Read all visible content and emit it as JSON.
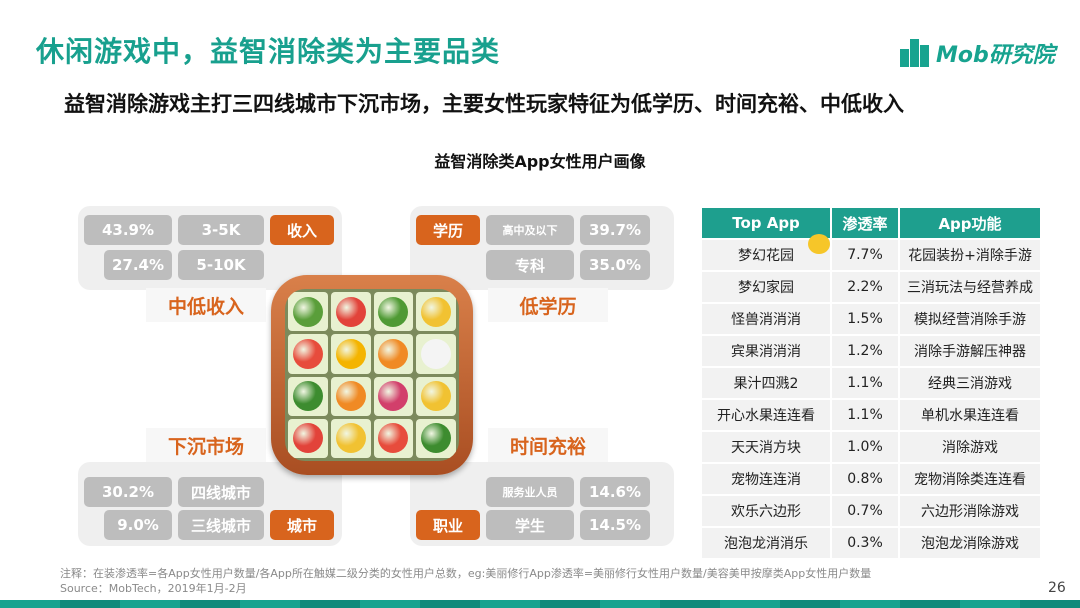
{
  "header": {
    "title": "休闲游戏中，益智消除类为主要品类",
    "subtitle": "益智消除游戏主打三四线城市下沉市场，主要女性玩家特征为低学历、时间充裕、中低收入",
    "logo_text": "Mob研究院"
  },
  "section_title": "益智消除类App女性用户画像",
  "income": {
    "label": "中低收入",
    "tag": "收入",
    "rows": [
      {
        "pct": "43.9%",
        "range": "3-5K"
      },
      {
        "pct": "27.4%",
        "range": "5-10K"
      }
    ]
  },
  "education": {
    "label": "低学历",
    "tag": "学历",
    "rows": [
      {
        "name": "高中及以下",
        "pct": "39.7%"
      },
      {
        "name": "专科",
        "pct": "35.0%"
      }
    ]
  },
  "market": {
    "label": "下沉市场",
    "tag": "城市",
    "rows": [
      {
        "pct": "30.2%",
        "name": "四线城市"
      },
      {
        "pct": "9.0%",
        "name": "三线城市"
      }
    ]
  },
  "time": {
    "label": "时间充裕",
    "tag": "职业",
    "rows": [
      {
        "name": "服务业人员",
        "pct": "14.6%"
      },
      {
        "name": "学生",
        "pct": "14.5%"
      }
    ]
  },
  "app_table": {
    "headers": [
      "Top App",
      "渗透率",
      "App功能"
    ],
    "rows": [
      [
        "梦幻花园",
        "7.7%",
        "花园装扮+消除手游"
      ],
      [
        "梦幻家园",
        "2.2%",
        "三消玩法与经营养成"
      ],
      [
        "怪兽消消消",
        "1.5%",
        "模拟经营消除手游"
      ],
      [
        "宾果消消消",
        "1.2%",
        "消除手游解压神器"
      ],
      [
        "果汁四溅2",
        "1.1%",
        "经典三消游戏"
      ],
      [
        "开心水果连连看",
        "1.1%",
        "单机水果连连看"
      ],
      [
        "天天消方块",
        "1.0%",
        "消除游戏"
      ],
      [
        "宠物连连消",
        "0.8%",
        "宠物消除类连连看"
      ],
      [
        "欢乐六边形",
        "0.7%",
        "六边形消除游戏"
      ],
      [
        "泡泡龙消消乐",
        "0.3%",
        "泡泡龙消除游戏"
      ]
    ]
  },
  "footer": {
    "note": "注释：在装渗透率=各App女性用户数量/各App所在触媒二级分类的女性用户总数，eg:美丽修行App渗透率=美丽修行女性用户数量/美容美甲按摩类App女性用户数量",
    "source": "Source：MobTech，2019年1月-2月",
    "page": "26"
  },
  "colors": {
    "teal": "#1e9f8e",
    "orange": "#d8641d",
    "gray_cell": "#bdbdbd"
  },
  "game_icon": {
    "fruits": [
      "#5a9e3a",
      "#e2433a",
      "#4f9a34",
      "#f1c232",
      "#e74c3c",
      "#f4b400",
      "#f08a24",
      "#ffffff",
      "#3d8c2f",
      "#f08a24",
      "#d23f6b",
      "#f1c232",
      "#e2433a",
      "#f1c232",
      "#e74c3c",
      "#3d8c2f"
    ]
  }
}
